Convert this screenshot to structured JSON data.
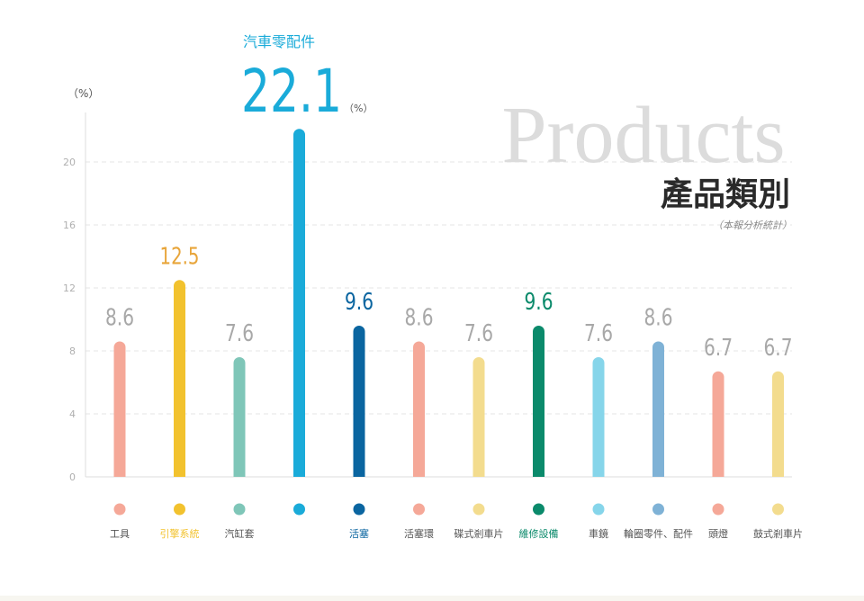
{
  "chart_data": {
    "type": "bar",
    "title": "產品類別",
    "title_en": "Products",
    "subtitle": "（本報分析統計）",
    "ylabel": "（%）",
    "ylim": [
      0,
      23
    ],
    "yticks": [
      0,
      4,
      8,
      12,
      16,
      20
    ],
    "grid": true,
    "categories": [
      "工具",
      "引擎系統",
      "汽缸套",
      "汽車零配件",
      "活塞",
      "活塞環",
      "碟式剎車片",
      "維修設備",
      "車鏡",
      "輪圈零件、配件",
      "頭燈",
      "鼓式剎車片"
    ],
    "values": [
      8.6,
      12.5,
      7.6,
      22.1,
      9.6,
      8.6,
      7.6,
      9.6,
      7.6,
      8.6,
      6.7,
      6.7
    ],
    "value_labels": [
      "8.6",
      "12.5",
      "7.6",
      "22.1",
      "9.6",
      "8.6",
      "7.6",
      "9.6",
      "7.6",
      "8.6",
      "6.7",
      "6.7"
    ],
    "bar_colors": [
      "#f5a898",
      "#f2c22e",
      "#7fc6b8",
      "#1aabd9",
      "#0a65a0",
      "#f5a898",
      "#f3dc8e",
      "#0b8a6b",
      "#86d5ea",
      "#7fb2d6",
      "#f5a898",
      "#f3dc8e"
    ],
    "label_colors": [
      "#a8a8a8",
      "#e8a53a",
      "#a8a8a8",
      "#1aabd9",
      "#0a65a0",
      "#a8a8a8",
      "#a8a8a8",
      "#0b8a6b",
      "#a8a8a8",
      "#a8a8a8",
      "#a8a8a8",
      "#a8a8a8"
    ],
    "category_label_colors": [
      "#555555",
      "#f2c22e",
      "#555555",
      "#1aabd9",
      "#0a65a0",
      "#555555",
      "#555555",
      "#0b8a6b",
      "#555555",
      "#555555",
      "#555555",
      "#555555"
    ],
    "highlight": {
      "index": 3,
      "name": "汽車零配件",
      "value_text": "22.1",
      "unit": "（%）"
    }
  }
}
